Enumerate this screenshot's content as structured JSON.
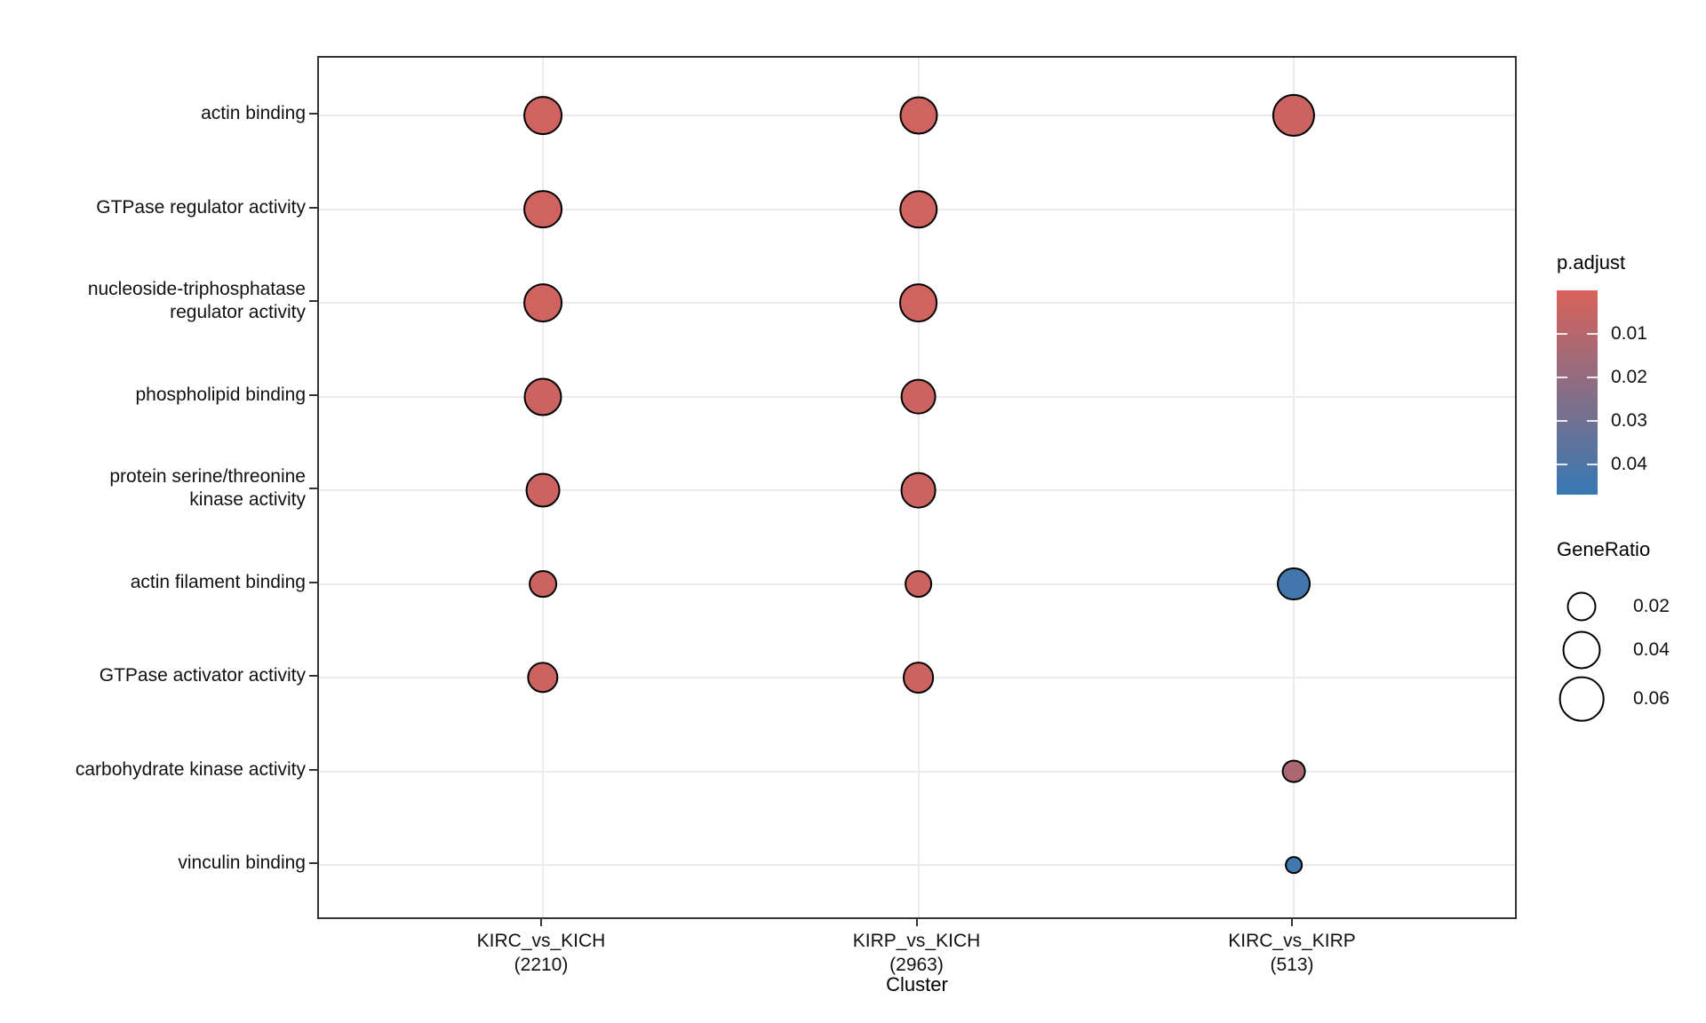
{
  "chart_data": {
    "type": "scatter",
    "title": "",
    "xlabel": "Cluster",
    "ylabel": "",
    "grid": true,
    "legend_position": "right",
    "terms": [
      "actin binding",
      "GTPase regulator activity",
      "nucleoside-triphosphatase\nregulator activity",
      "phospholipid binding",
      "protein serine/threonine\nkinase activity",
      "actin filament binding",
      "GTPase activator activity",
      "carbohydrate kinase activity",
      "vinculin binding"
    ],
    "clusters": [
      {
        "name": "KIRC_vs_KICH",
        "count": "(2210)"
      },
      {
        "name": "KIRP_vs_KICH",
        "count": "(2963)"
      },
      {
        "name": "KIRC_vs_KIRP",
        "count": "(513)"
      }
    ],
    "points": [
      {
        "cluster": 0,
        "term": 0,
        "gene_ratio": 0.042,
        "p_adjust": 0.003
      },
      {
        "cluster": 0,
        "term": 1,
        "gene_ratio": 0.042,
        "p_adjust": 0.003
      },
      {
        "cluster": 0,
        "term": 2,
        "gene_ratio": 0.042,
        "p_adjust": 0.003
      },
      {
        "cluster": 0,
        "term": 3,
        "gene_ratio": 0.04,
        "p_adjust": 0.004
      },
      {
        "cluster": 0,
        "term": 4,
        "gene_ratio": 0.031,
        "p_adjust": 0.004
      },
      {
        "cluster": 0,
        "term": 5,
        "gene_ratio": 0.018,
        "p_adjust": 0.004
      },
      {
        "cluster": 0,
        "term": 6,
        "gene_ratio": 0.024,
        "p_adjust": 0.004
      },
      {
        "cluster": 1,
        "term": 0,
        "gene_ratio": 0.04,
        "p_adjust": 0.003
      },
      {
        "cluster": 1,
        "term": 1,
        "gene_ratio": 0.041,
        "p_adjust": 0.003
      },
      {
        "cluster": 1,
        "term": 2,
        "gene_ratio": 0.042,
        "p_adjust": 0.003
      },
      {
        "cluster": 1,
        "term": 3,
        "gene_ratio": 0.035,
        "p_adjust": 0.004
      },
      {
        "cluster": 1,
        "term": 4,
        "gene_ratio": 0.035,
        "p_adjust": 0.004
      },
      {
        "cluster": 1,
        "term": 5,
        "gene_ratio": 0.018,
        "p_adjust": 0.004
      },
      {
        "cluster": 1,
        "term": 6,
        "gene_ratio": 0.025,
        "p_adjust": 0.004
      },
      {
        "cluster": 2,
        "term": 0,
        "gene_ratio": 0.053,
        "p_adjust": 0.004
      },
      {
        "cluster": 2,
        "term": 5,
        "gene_ratio": 0.029,
        "p_adjust": 0.043
      },
      {
        "cluster": 2,
        "term": 7,
        "gene_ratio": 0.011,
        "p_adjust": 0.013
      },
      {
        "cluster": 2,
        "term": 8,
        "gene_ratio": 0.004,
        "p_adjust": 0.044
      }
    ],
    "color_scale": {
      "label": "p.adjust",
      "low_color": "#d9625a",
      "high_color": "#3579b2",
      "domain": [
        0,
        0.047
      ],
      "ticks": [
        0.01,
        0.02,
        0.03,
        0.04
      ]
    },
    "size_scale": {
      "label": "GeneRatio",
      "ticks": [
        0.02,
        0.04,
        0.06
      ]
    }
  }
}
